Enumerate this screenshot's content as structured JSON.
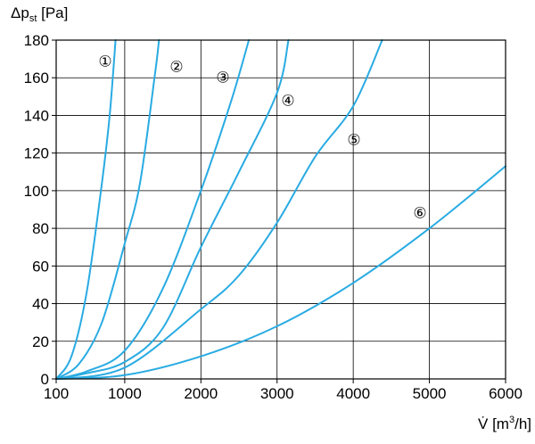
{
  "chart_data": {
    "type": "line",
    "ylabel": {
      "main": "Δp",
      "sub": "st",
      "unit": " [Pa]"
    },
    "xlabel": {
      "main": "V̇",
      "unit": " [m",
      "sup": "3",
      "tail": "/h]"
    },
    "xlim": [
      100,
      6000
    ],
    "ylim": [
      0,
      180
    ],
    "x_ticks": [
      100,
      1000,
      2000,
      3000,
      4000,
      5000,
      6000
    ],
    "y_ticks": [
      0,
      20,
      40,
      60,
      80,
      100,
      120,
      140,
      160,
      180
    ],
    "grid": true,
    "line_color": "#29abe2",
    "series": [
      {
        "label": "①",
        "x": [
          100,
          300,
          500,
          700,
          800,
          880
        ],
        "y": [
          0,
          12,
          46,
          104,
          139,
          180
        ]
      },
      {
        "label": "②",
        "x": [
          100,
          400,
          700,
          1000,
          1200,
          1400,
          1450
        ],
        "y": [
          0,
          8,
          30,
          72,
          104,
          163,
          180
        ]
      },
      {
        "label": "③",
        "x": [
          100,
          500,
          1000,
          1500,
          2000,
          2400,
          2630
        ],
        "y": [
          0,
          4,
          15,
          48,
          100,
          148,
          180
        ]
      },
      {
        "label": "④",
        "x": [
          100,
          500,
          1000,
          1500,
          2000,
          2500,
          3000,
          3150
        ],
        "y": [
          0,
          3,
          9,
          27,
          70,
          110,
          152,
          180
        ]
      },
      {
        "label": "⑤",
        "x": [
          100,
          1000,
          2000,
          2500,
          3000,
          3500,
          4000,
          4380
        ],
        "y": [
          0,
          6,
          37,
          55,
          83,
          118,
          145,
          180
        ]
      },
      {
        "label": "⑥",
        "x": [
          100,
          1000,
          2000,
          3000,
          4000,
          5000,
          6000
        ],
        "y": [
          0,
          2,
          12,
          28,
          51,
          80,
          113
        ]
      }
    ]
  }
}
